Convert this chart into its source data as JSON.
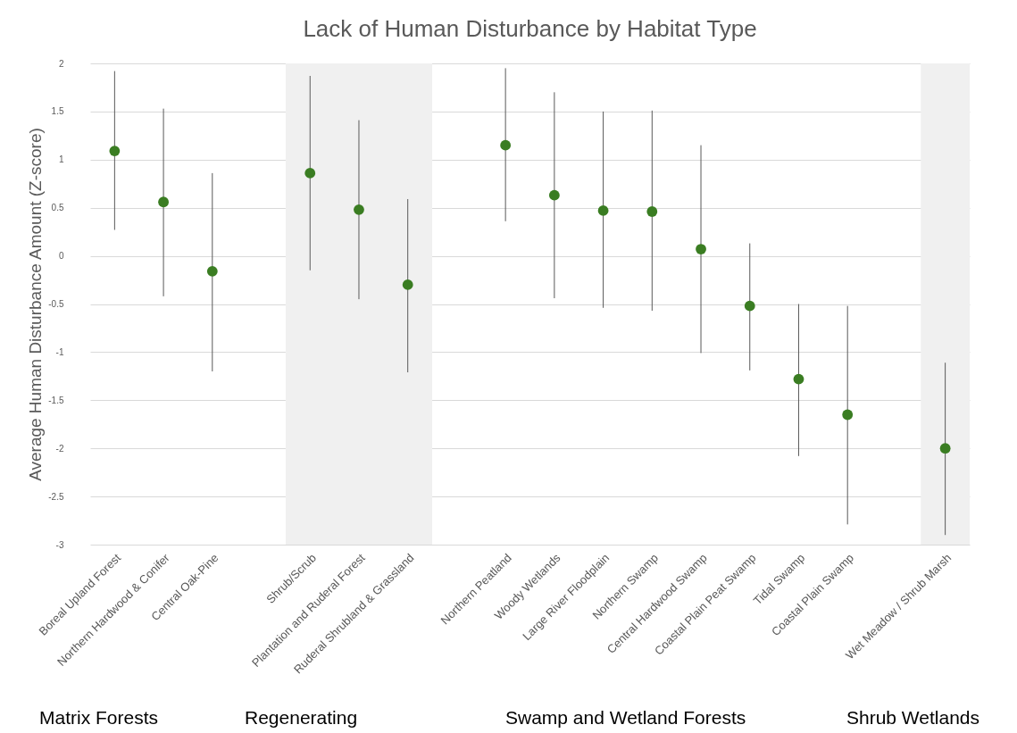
{
  "chart_data": {
    "type": "scatter",
    "title": "Lack of Human Disturbance by Habitat Type",
    "ylabel": "Average Human Disturbance Amount (Z-score)",
    "categories": [
      "Boreal Upland Forest",
      "Northern Hardwood & Conifer",
      "Central Oak-Pine",
      null,
      "Shrub/Scrub",
      "Plantation and Ruderal Forest",
      "Ruderal Shrubland & Grassland",
      null,
      "Northern Peatland",
      "Woody Wetlands",
      "Large River Floodplain",
      "Northern Swamp",
      "Central Hardwood Swamp",
      "Coastal Plain Peat Swamp",
      "Tidal Swamp",
      "Coastal Plain Swamp",
      null,
      "Wet Meadow / Shrub Marsh"
    ],
    "values": [
      1.09,
      0.56,
      -0.16,
      null,
      0.86,
      0.48,
      -0.3,
      null,
      1.15,
      0.63,
      0.47,
      0.46,
      0.07,
      -0.52,
      -1.28,
      -1.65,
      null,
      -2.0
    ],
    "errors": [
      [
        0.27,
        1.92
      ],
      [
        -0.42,
        1.53
      ],
      [
        -1.2,
        0.86
      ],
      null,
      [
        -0.15,
        1.87
      ],
      [
        -0.45,
        1.41
      ],
      [
        -1.21,
        0.59
      ],
      null,
      [
        0.36,
        1.95
      ],
      [
        -0.44,
        1.7
      ],
      [
        -0.54,
        1.5
      ],
      [
        -0.57,
        1.51
      ],
      [
        -1.01,
        1.15
      ],
      [
        -1.19,
        0.13
      ],
      [
        -2.08,
        -0.5
      ],
      [
        -2.79,
        -0.52
      ],
      null,
      [
        -2.9,
        -1.11
      ]
    ],
    "color": "#3a7d22",
    "marker": "circle",
    "ylim": [
      -3,
      2
    ],
    "yticks": [
      -3,
      -2.5,
      -2,
      -1.5,
      -1,
      -0.5,
      0,
      0.5,
      1,
      1.5,
      2
    ],
    "grid": "y",
    "bands": [
      {
        "axis": "x",
        "from": "Shrub/Scrub",
        "to": "Ruderal Shrubland & Grassland",
        "color": "#f0f0f0"
      },
      {
        "axis": "x",
        "from": "Wet Meadow / Shrub Marsh",
        "to": "Wet Meadow / Shrub Marsh",
        "color": "#f0f0f0"
      }
    ],
    "annotations": [
      "Matrix Forests",
      "Regenerating",
      "Swamp and Wetland Forests",
      "Shrub Wetlands"
    ]
  }
}
